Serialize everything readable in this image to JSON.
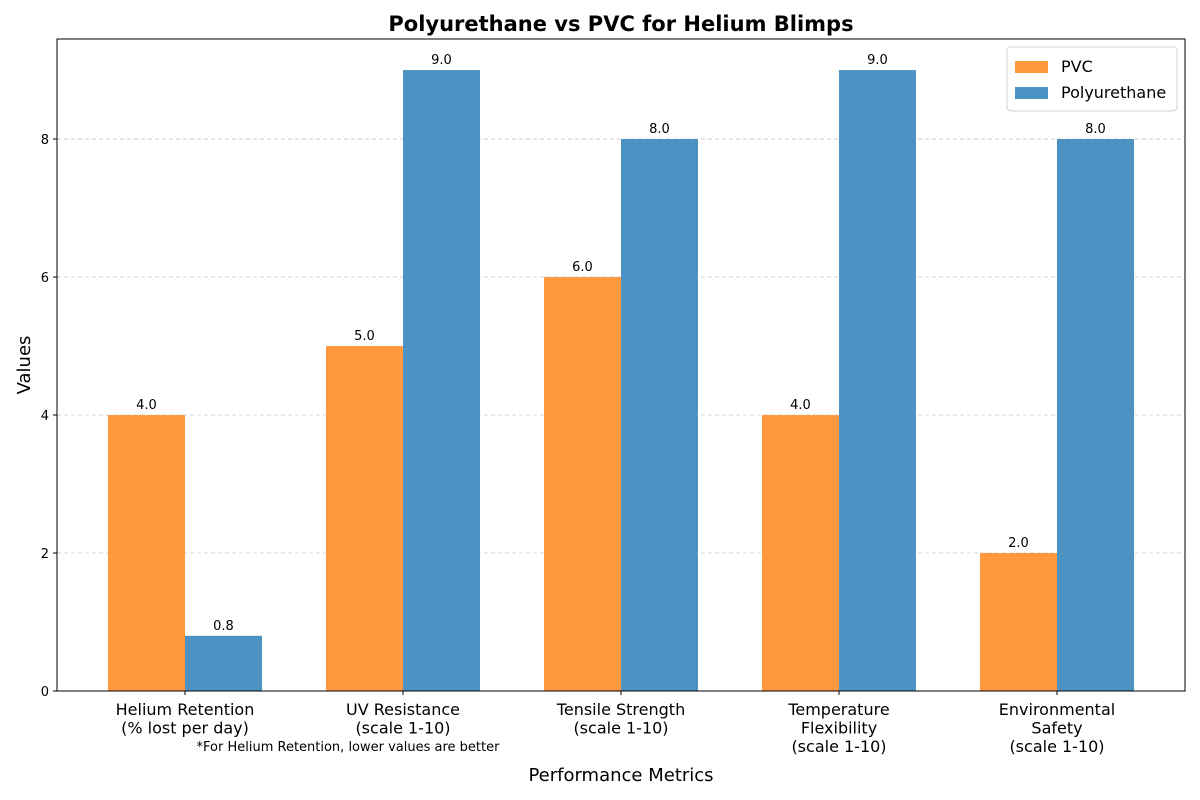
{
  "chart_data": {
    "type": "bar",
    "title": "Polyurethane vs PVC for Helium Blimps",
    "x_label": "Performance Metrics",
    "y_label": "Values",
    "annotation": "*For Helium Retention, lower values are better",
    "categories": [
      "Helium Retention\n(% lost per day)",
      "UV Resistance\n(scale 1-10)",
      "Tensile Strength\n(scale 1-10)",
      "Temperature\nFlexibility\n(scale 1-10)",
      "Environmental\nSafety\n(scale 1-10)"
    ],
    "series": [
      {
        "name": "PVC",
        "color": "#ff983e",
        "values": [
          4,
          5,
          6,
          4,
          2
        ],
        "value_labels": [
          "4.0",
          "5.0",
          "6.0",
          "4.0",
          "2.0"
        ]
      },
      {
        "name": "Polyurethane",
        "color": "#4c92c3",
        "values": [
          0.8,
          9,
          8,
          9,
          8
        ],
        "value_labels": [
          "0.8",
          "9.0",
          "8.0",
          "9.0",
          "8.0"
        ]
      }
    ],
    "ylim": [
      0,
      9.45
    ],
    "yticks": [
      0,
      2,
      4,
      6,
      8
    ],
    "grid": true,
    "legend": "upper right"
  }
}
